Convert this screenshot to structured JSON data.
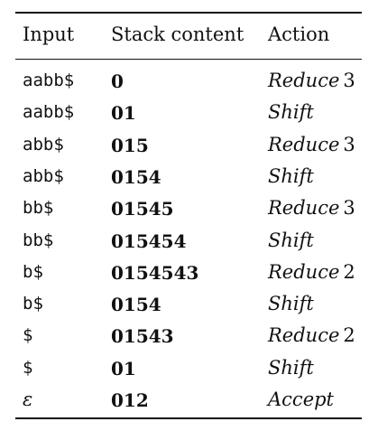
{
  "table": {
    "headers": {
      "input": "Input",
      "stack": "Stack content",
      "action": "Action"
    },
    "rows": [
      {
        "input": "aabb$",
        "stack": "0",
        "action": "Reduce",
        "rule": "3"
      },
      {
        "input": "aabb$",
        "stack": "01",
        "action": "Shift",
        "rule": ""
      },
      {
        "input": "abb$",
        "stack": "015",
        "action": "Reduce",
        "rule": "3"
      },
      {
        "input": "abb$",
        "stack": "0154",
        "action": "Shift",
        "rule": ""
      },
      {
        "input": "bb$",
        "stack": "01545",
        "action": "Reduce",
        "rule": "3"
      },
      {
        "input": "bb$",
        "stack": "015454",
        "action": "Shift",
        "rule": ""
      },
      {
        "input": "b$",
        "stack": "0154543",
        "action": "Reduce",
        "rule": "2"
      },
      {
        "input": "b$",
        "stack": "0154",
        "action": "Shift",
        "rule": ""
      },
      {
        "input": "$",
        "stack": "01543",
        "action": "Reduce",
        "rule": "2"
      },
      {
        "input": "$",
        "stack": "01",
        "action": "Shift",
        "rule": ""
      },
      {
        "input": "ε",
        "stack": "012",
        "action": "Accept",
        "rule": ""
      }
    ]
  }
}
